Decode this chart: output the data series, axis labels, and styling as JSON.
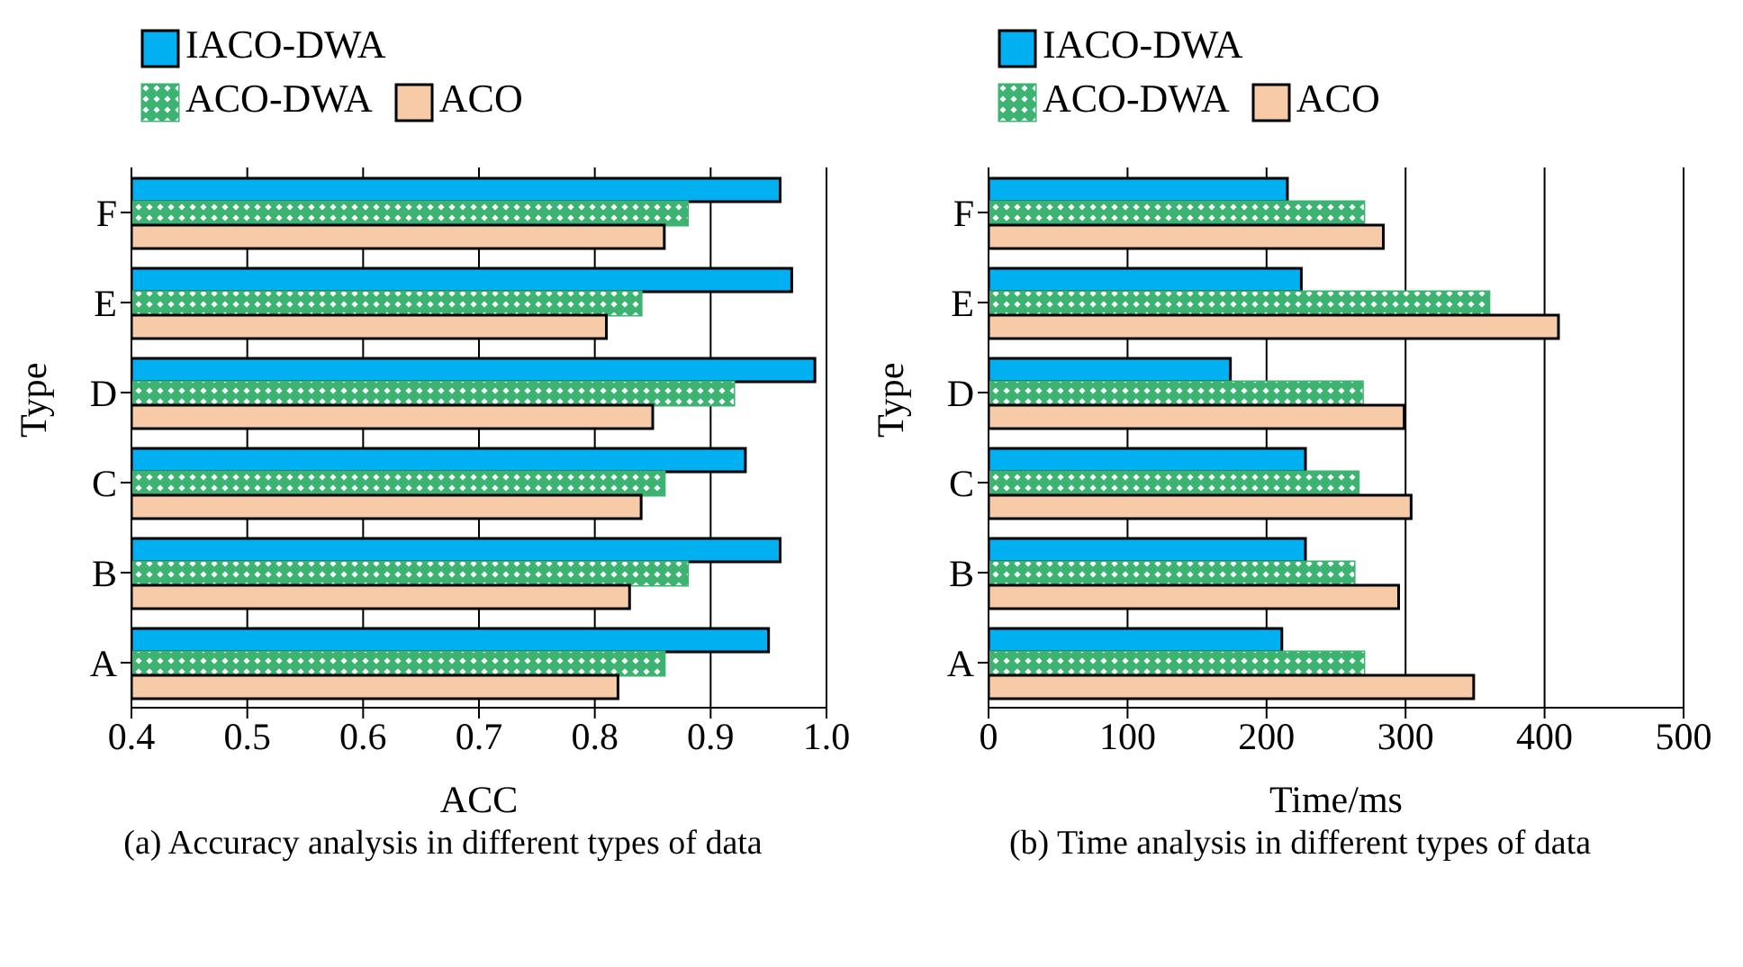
{
  "chart_data": [
    {
      "type": "bar",
      "orientation": "horizontal",
      "title": "(a) Accuracy analysis in different types of data",
      "xlabel": "ACC",
      "ylabel": "Type",
      "categories": [
        "F",
        "E",
        "D",
        "C",
        "B",
        "A"
      ],
      "series": [
        {
          "name": "IACO-DWA",
          "color": "#00b0f0",
          "values": [
            0.96,
            0.97,
            0.99,
            0.93,
            0.96,
            0.95
          ]
        },
        {
          "name": "ACO-DWA",
          "color": "#3cb371",
          "values": [
            0.88,
            0.84,
            0.92,
            0.86,
            0.88,
            0.86
          ]
        },
        {
          "name": "ACO",
          "color": "#f8cba8",
          "values": [
            0.86,
            0.81,
            0.85,
            0.84,
            0.83,
            0.82
          ]
        }
      ],
      "xlim": [
        0.4,
        1.0
      ],
      "xticks": [
        0.4,
        0.5,
        0.6,
        0.7,
        0.8,
        0.9,
        {
          "value": 1.0,
          "label": "1.0"
        }
      ],
      "grid": "x",
      "legend": "top"
    },
    {
      "type": "bar",
      "orientation": "horizontal",
      "title": "(b) Time analysis in different types of data",
      "xlabel": "Time/ms",
      "ylabel": "Type",
      "categories": [
        "F",
        "E",
        "D",
        "C",
        "B",
        "A"
      ],
      "series": [
        {
          "name": "IACO-DWA",
          "color": "#00b0f0",
          "values": [
            215,
            225,
            174,
            228,
            228,
            211
          ]
        },
        {
          "name": "ACO-DWA",
          "color": "#3cb371",
          "values": [
            270,
            360,
            269,
            266,
            263,
            270
          ]
        },
        {
          "name": "ACO",
          "color": "#f8cba8",
          "values": [
            284,
            410,
            299,
            304,
            295,
            349
          ]
        }
      ],
      "xlim": [
        0,
        500
      ],
      "xticks": [
        0,
        100,
        200,
        300,
        400,
        500
      ],
      "grid": "x",
      "legend": "top"
    }
  ]
}
